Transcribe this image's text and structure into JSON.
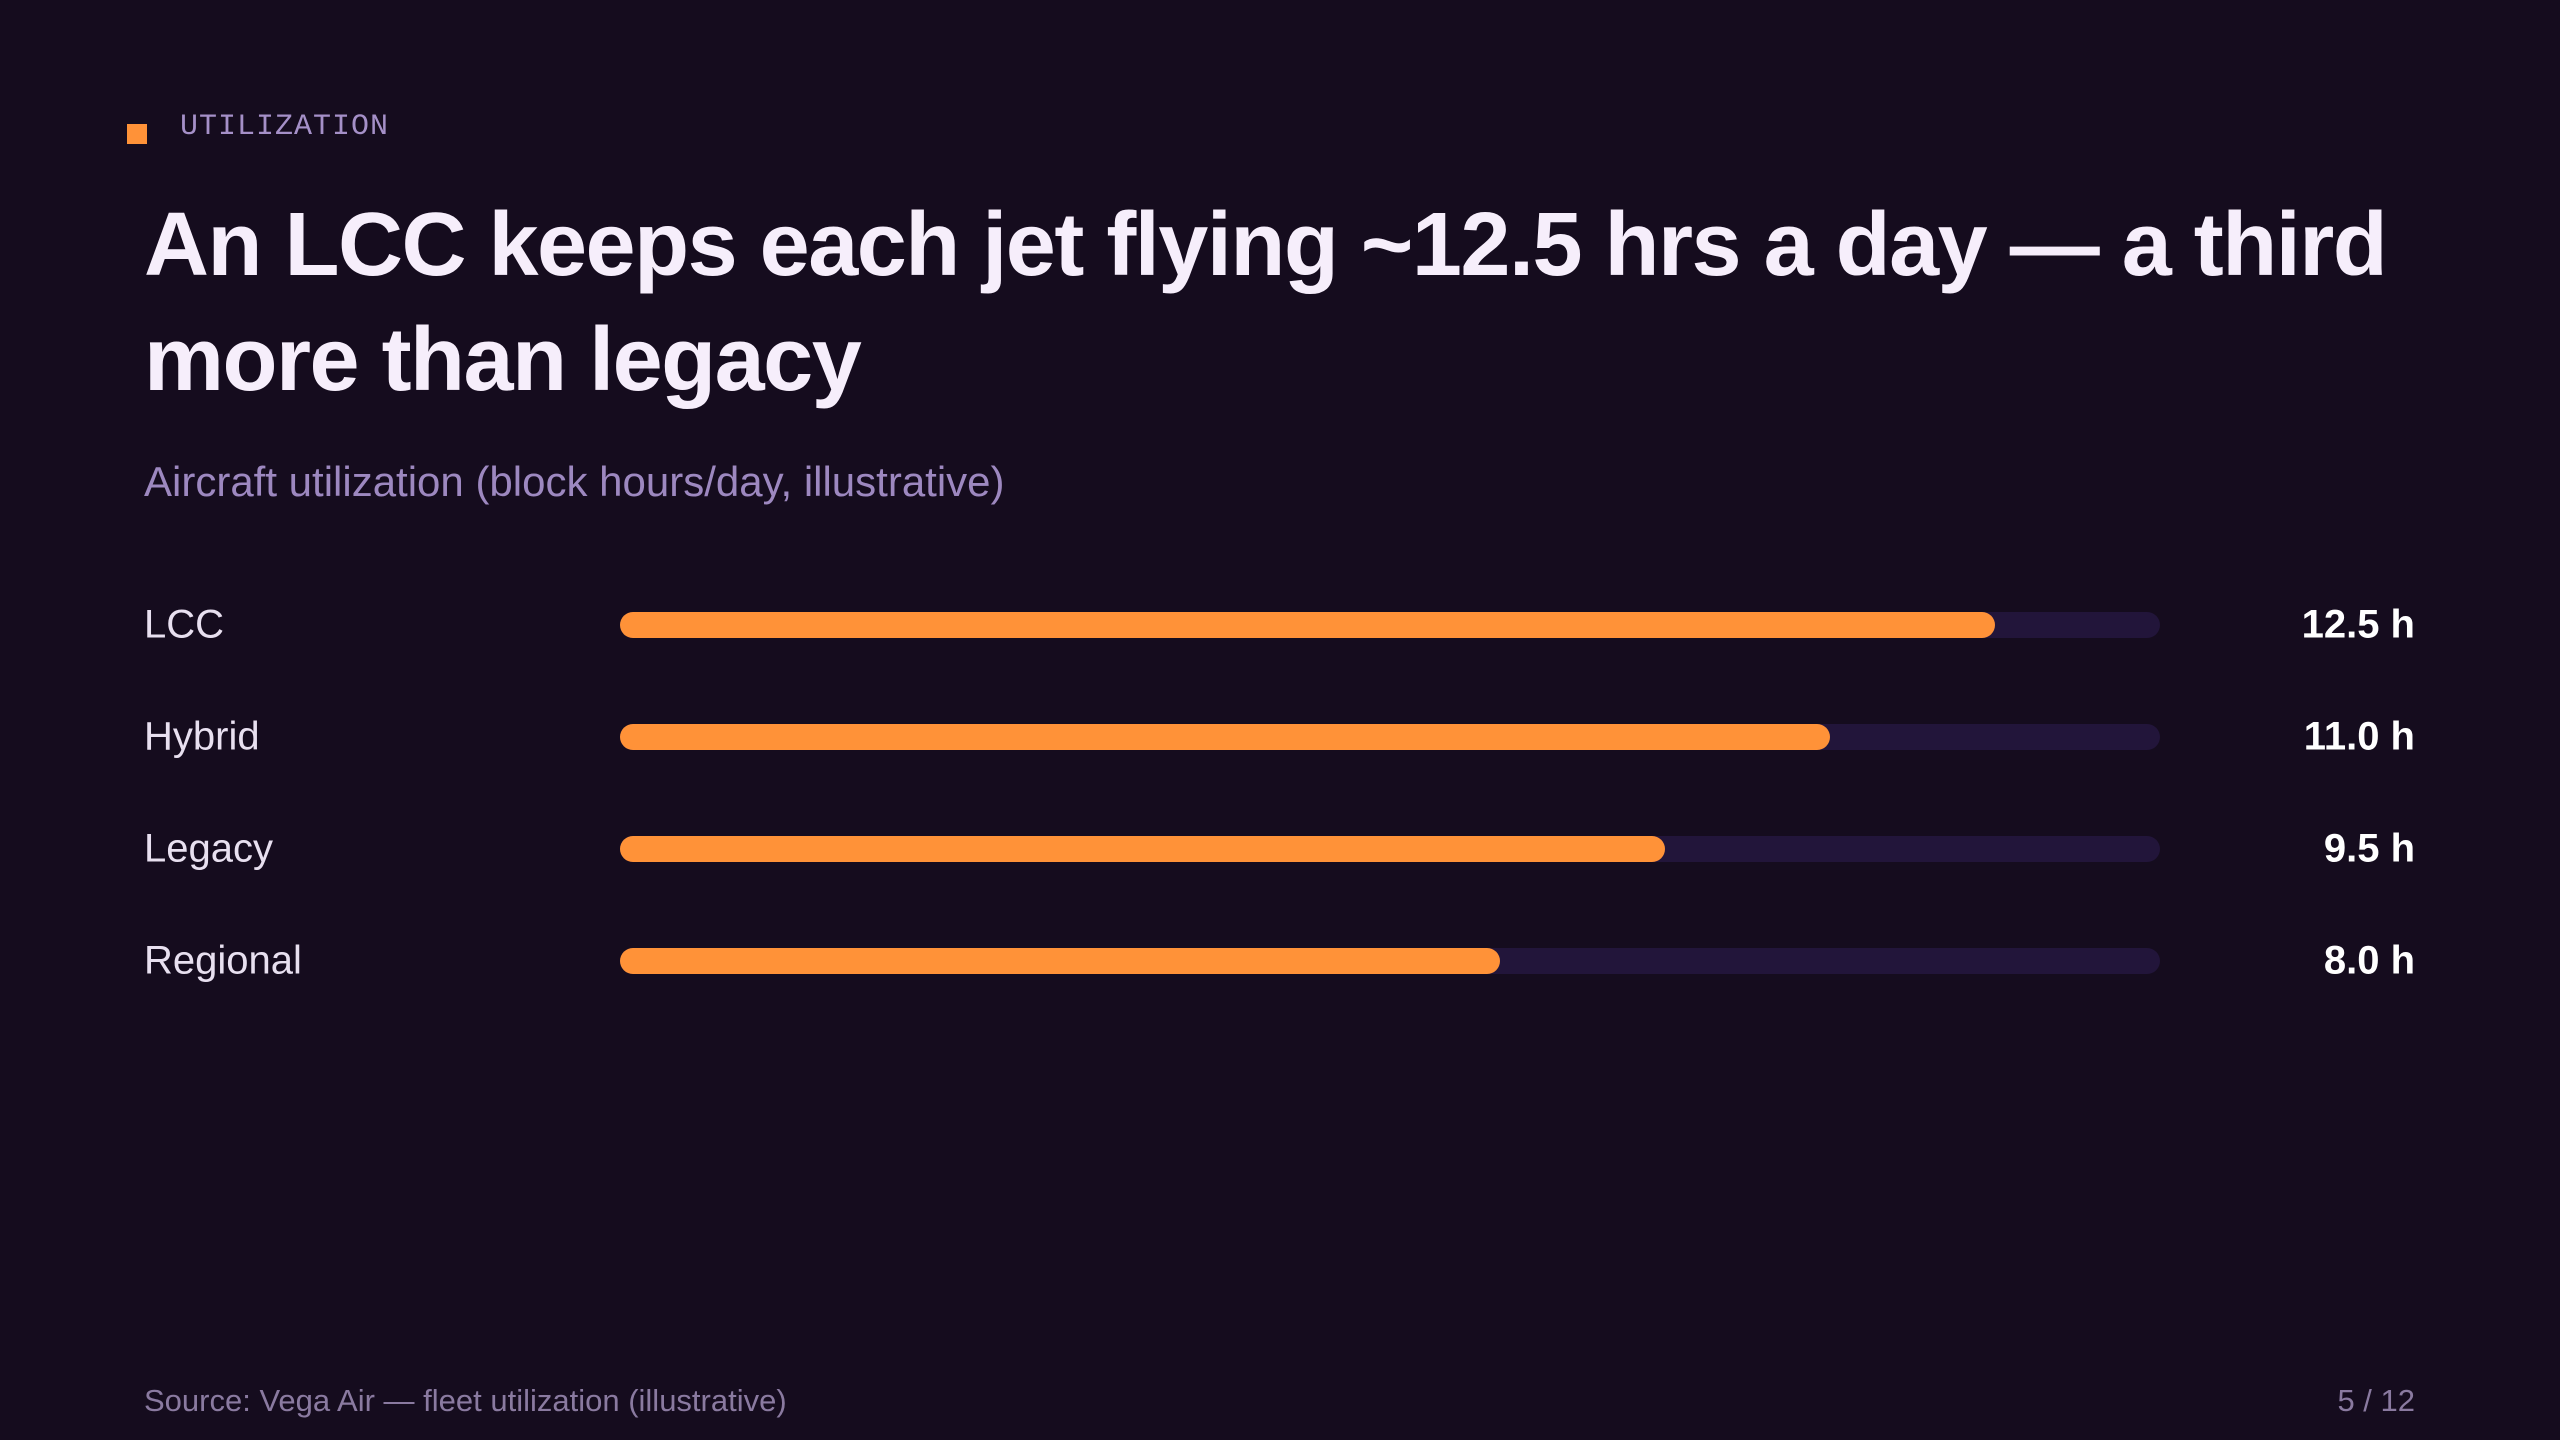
{
  "slide": {
    "kicker": "UTILIZATION",
    "source": "Source: Vega Air — fleet utilization (illustrative)",
    "page": "5 / 12"
  },
  "chart_data": {
    "type": "bar",
    "orientation": "horizontal",
    "title": "An LCC keeps each jet flying ~12.5 hrs a day — a third more than legacy",
    "subtitle": "Aircraft utilization (block hours/day, illustrative)",
    "categories": [
      "LCC",
      "Hybrid",
      "Legacy",
      "Regional"
    ],
    "values": [
      12.5,
      11.0,
      9.5,
      8.0
    ],
    "value_labels": [
      "12.5 h",
      "11.0 h",
      "9.5 h",
      "8.0 h"
    ],
    "color": "#ff9238",
    "track_color": "#22153a",
    "xlim": [
      0,
      14
    ]
  }
}
